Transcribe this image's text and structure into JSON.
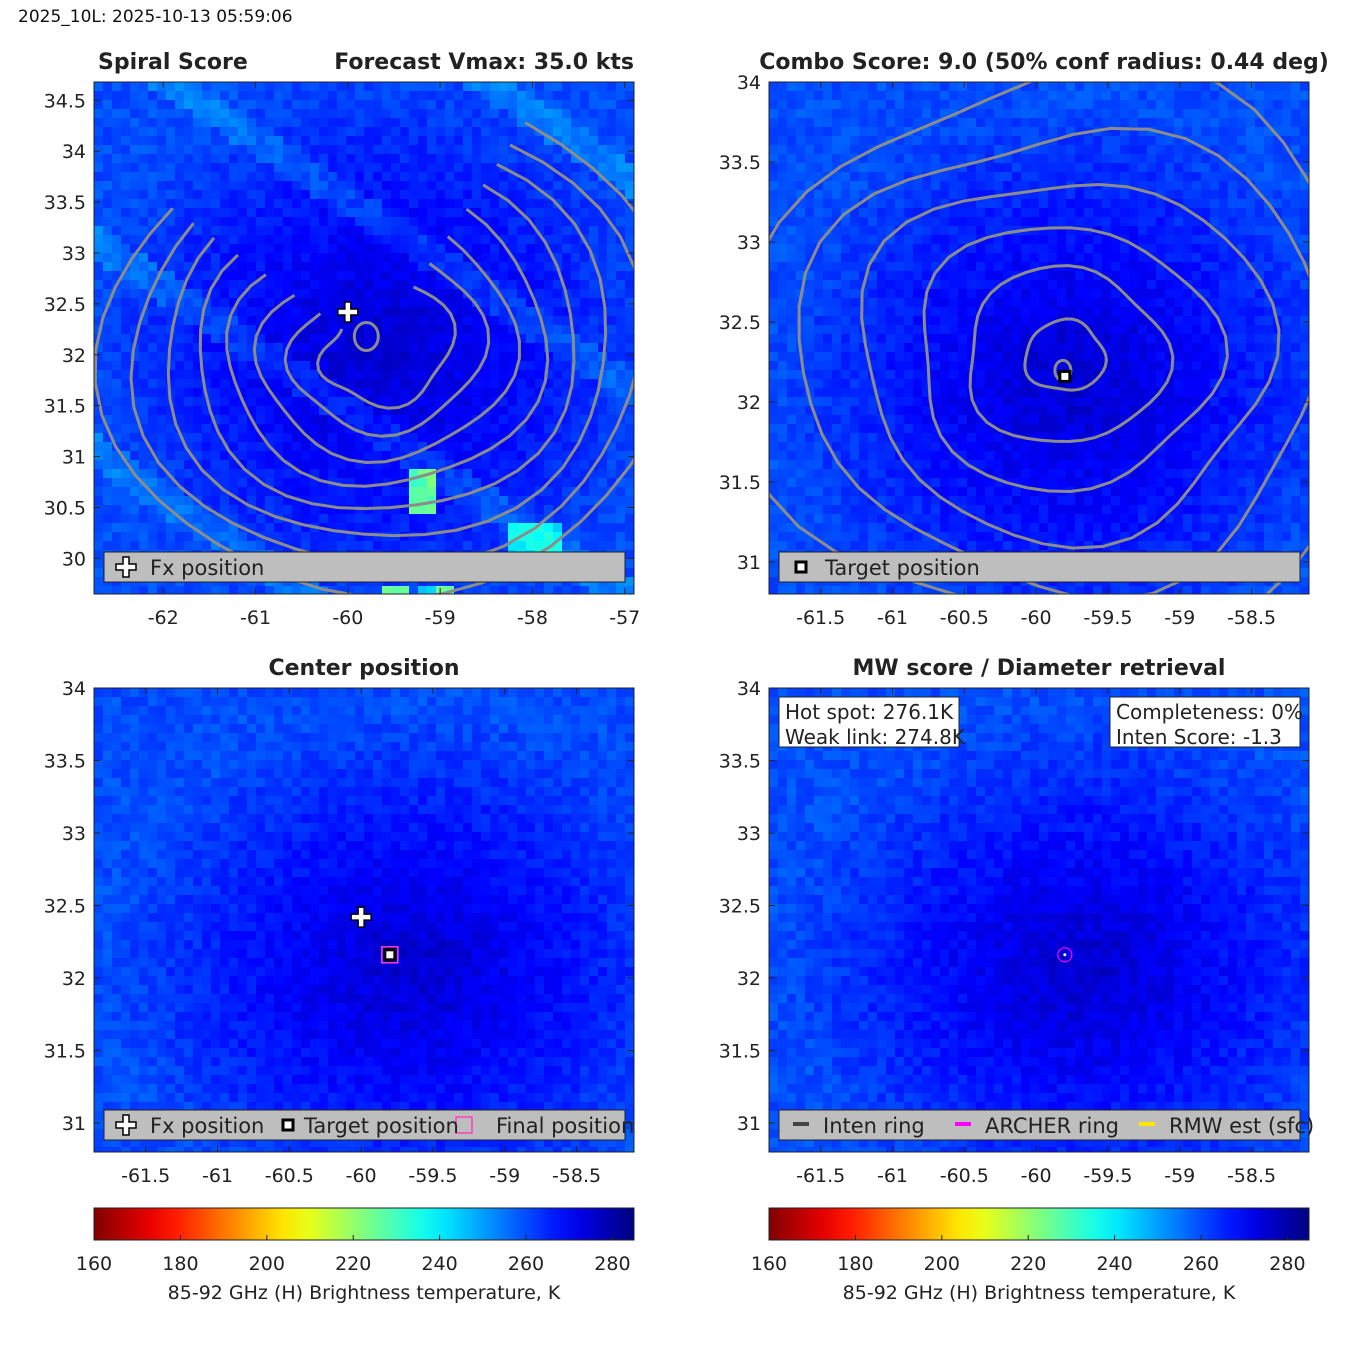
{
  "header": {
    "text": "2025_10L: 2025-10-13 05:59:06"
  },
  "colors": {
    "contour": "#8c8c8c",
    "fx_marker": "#ffffff",
    "target_marker": "#000000",
    "final_marker": "#ff3fbf",
    "archer_ring": "#ff00ff",
    "rmw": "#ffe600",
    "inten_ring": "#444444",
    "legend_bg": "#bebebe"
  },
  "chart_data": [
    {
      "type": "heatmap",
      "id": "spiral",
      "title_left": "Spiral Score",
      "title_right": "Forecast Vmax: 35.0 kts",
      "xlim": [
        -62.75,
        -56.9
      ],
      "ylim": [
        29.65,
        34.68
      ],
      "xticks": [
        -62,
        -61,
        -60,
        -59,
        -58,
        -57
      ],
      "yticks": [
        30,
        30.5,
        31,
        31.5,
        32,
        32.5,
        33,
        33.5,
        34,
        34.5
      ],
      "xtick_labels": [
        "-62",
        "-61",
        "-60",
        "-59",
        "-58",
        "-57"
      ],
      "ytick_labels": [
        "30",
        "30.5",
        "31",
        "31.5",
        "32",
        "32.5",
        "33",
        "33.5",
        "34",
        "34.5"
      ],
      "center": [
        -59.7,
        32.1
      ],
      "markers": [
        {
          "kind": "fx",
          "x": -60.0,
          "y": 32.42
        }
      ],
      "legend": [
        "Fx position"
      ]
    },
    {
      "type": "heatmap",
      "id": "combo",
      "title": "Combo Score: 9.0  (50% conf radius: 0.44 deg)",
      "xlim": [
        -61.86,
        -58.1
      ],
      "ylim": [
        30.8,
        34.0
      ],
      "xticks": [
        -61.5,
        -61,
        -60.5,
        -60,
        -59.5,
        -59,
        -58.5
      ],
      "yticks": [
        31,
        31.5,
        32,
        32.5,
        33,
        33.5,
        34
      ],
      "xtick_labels": [
        "-61.5",
        "-61",
        "-60.5",
        "-60",
        "-59.5",
        "-59",
        "-58.5"
      ],
      "ytick_labels": [
        "31",
        "31.5",
        "32",
        "32.5",
        "33",
        "33.5",
        "34"
      ],
      "center": [
        -59.8,
        32.16
      ],
      "markers": [
        {
          "kind": "target",
          "x": -59.8,
          "y": 32.16
        }
      ],
      "legend": [
        "Target position"
      ]
    },
    {
      "type": "heatmap",
      "id": "center",
      "title": "Center position",
      "xlim": [
        -61.86,
        -58.1
      ],
      "ylim": [
        30.8,
        34.0
      ],
      "xticks": [
        -61.5,
        -61,
        -60.5,
        -60,
        -59.5,
        -59,
        -58.5
      ],
      "yticks": [
        31,
        31.5,
        32,
        32.5,
        33,
        33.5,
        34
      ],
      "xtick_labels": [
        "-61.5",
        "-61",
        "-60.5",
        "-60",
        "-59.5",
        "-59",
        "-58.5"
      ],
      "ytick_labels": [
        "31",
        "31.5",
        "32",
        "32.5",
        "33",
        "33.5",
        "34"
      ],
      "center": [
        -59.7,
        32.1
      ],
      "markers": [
        {
          "kind": "fx",
          "x": -60.0,
          "y": 32.42
        },
        {
          "kind": "final",
          "x": -59.8,
          "y": 32.16
        },
        {
          "kind": "target",
          "x": -59.8,
          "y": 32.16
        }
      ],
      "legend": [
        "Fx position",
        "Target position",
        "Final position"
      ],
      "colorbar": {
        "min": 160,
        "max": 285,
        "ticks": [
          "160",
          "180",
          "200",
          "220",
          "240",
          "260",
          "280"
        ],
        "label": "85-92 GHz (H) Brightness temperature, K"
      }
    },
    {
      "type": "heatmap",
      "id": "mw",
      "title": "MW score / Diameter retrieval",
      "xlim": [
        -61.86,
        -58.1
      ],
      "ylim": [
        30.8,
        34.0
      ],
      "xticks": [
        -61.5,
        -61,
        -60.5,
        -60,
        -59.5,
        -59,
        -58.5
      ],
      "yticks": [
        31,
        31.5,
        32,
        32.5,
        33,
        33.5,
        34
      ],
      "xtick_labels": [
        "-61.5",
        "-61",
        "-60.5",
        "-60",
        "-59.5",
        "-59",
        "-58.5"
      ],
      "ytick_labels": [
        "31",
        "31.5",
        "32",
        "32.5",
        "33",
        "33.5",
        "34"
      ],
      "center": [
        -59.7,
        32.1
      ],
      "markers": [
        {
          "kind": "archer",
          "x": -59.8,
          "y": 32.16
        }
      ],
      "info_left": [
        "Hot spot: 276.1K",
        "Weak link: 274.8K"
      ],
      "info_right": [
        "Completeness: 0%",
        "Inten Score: -1.3"
      ],
      "legend": [
        "Inten ring",
        "ARCHER ring",
        "RMW est (sfc)"
      ],
      "colorbar": {
        "min": 160,
        "max": 285,
        "ticks": [
          "160",
          "180",
          "200",
          "220",
          "240",
          "260",
          "280"
        ],
        "label": "85-92 GHz (H) Brightness temperature, K"
      }
    }
  ]
}
